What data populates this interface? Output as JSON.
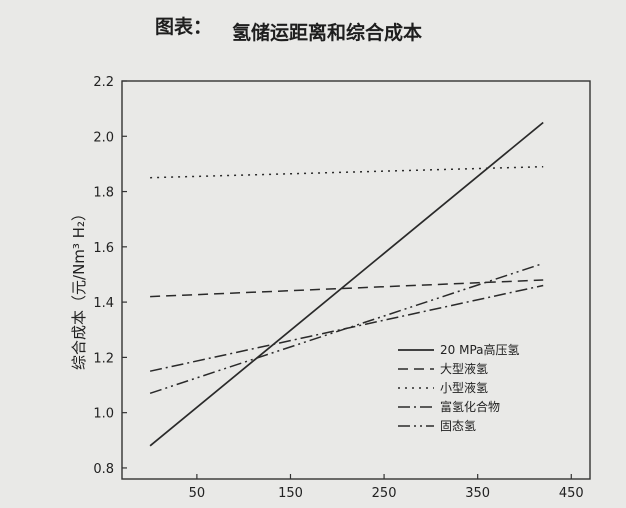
{
  "figure": {
    "title_prefix": "图表：",
    "title": "氢储运距离和综合成本"
  },
  "chart_data": {
    "type": "line",
    "xlabel": "",
    "ylabel": "综合成本（元/Nm³ H₂）",
    "xlim": [
      -30,
      470
    ],
    "ylim": [
      0.76,
      2.2
    ],
    "x_ticks": [
      50,
      150,
      250,
      350,
      450
    ],
    "y_ticks": [
      0.8,
      1.0,
      1.2,
      1.4,
      1.6,
      1.8,
      2.0,
      2.2
    ],
    "y_tick_labels": [
      "0.8",
      "1.0",
      "1.2",
      "1.4",
      "1.6",
      "1.8",
      "2.0",
      "2.2"
    ],
    "grid": false,
    "legend_position": "lower-right",
    "series": [
      {
        "name": "20 MPa高压氢",
        "style": "solid",
        "x": [
          0,
          420
        ],
        "y": [
          0.88,
          2.05
        ]
      },
      {
        "name": "大型液氢",
        "style": "dashed",
        "x": [
          0,
          420
        ],
        "y": [
          1.42,
          1.48
        ]
      },
      {
        "name": "小型液氢",
        "style": "dotted",
        "x": [
          0,
          420
        ],
        "y": [
          1.85,
          1.89
        ]
      },
      {
        "name": "富氢化合物",
        "style": "dashdot",
        "x": [
          0,
          420
        ],
        "y": [
          1.15,
          1.46
        ]
      },
      {
        "name": "固态氢",
        "style": "dashdotdot",
        "x": [
          0,
          420
        ],
        "y": [
          1.07,
          1.54
        ]
      }
    ]
  }
}
